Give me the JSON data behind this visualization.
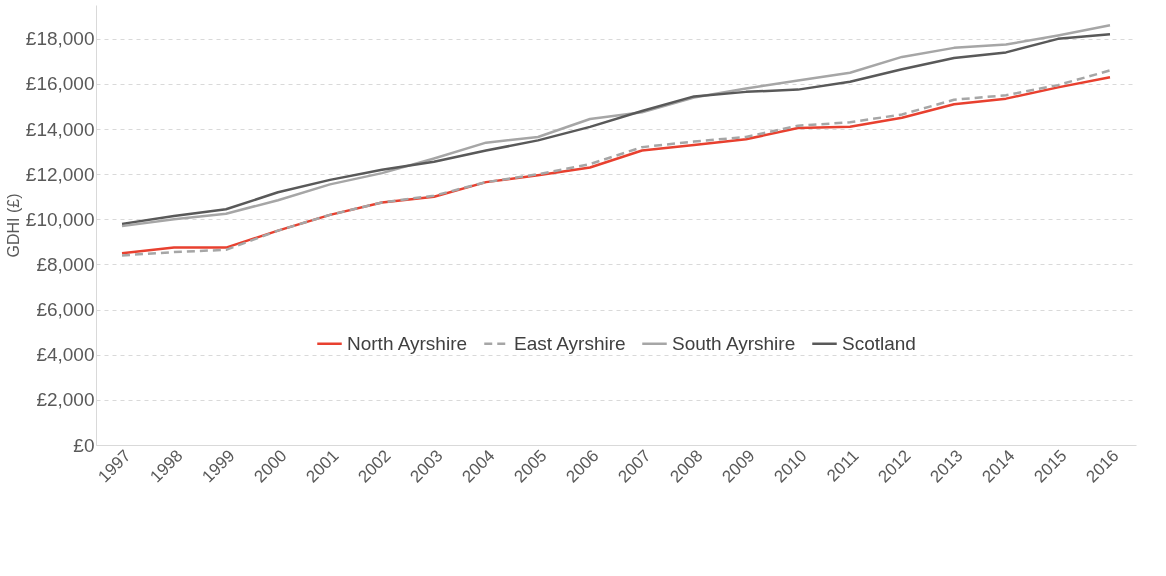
{
  "chart_data": {
    "type": "line",
    "ylabel": "GDHI (£)",
    "categories": [
      "1997",
      "1998",
      "1999",
      "2000",
      "2001",
      "2002",
      "2003",
      "2004",
      "2005",
      "2006",
      "2007",
      "2008",
      "2009",
      "2010",
      "2011",
      "2012",
      "2013",
      "2014",
      "2015",
      "2016"
    ],
    "series": [
      {
        "name": "North Ayrshire",
        "color": "#e8402f",
        "line_style": "solid",
        "values": [
          8500,
          8750,
          8750,
          9500,
          10200,
          10750,
          11000,
          11650,
          11950,
          12300,
          13050,
          13300,
          13550,
          14050,
          14100,
          14500,
          15100,
          15350,
          15850,
          16300
        ]
      },
      {
        "name": "East Ayrshire",
        "color": "#a6a6a6",
        "line_style": "dashed",
        "values": [
          8400,
          8550,
          8650,
          9500,
          10200,
          10750,
          11050,
          11650,
          12000,
          12450,
          13200,
          13450,
          13650,
          14150,
          14300,
          14650,
          15300,
          15500,
          15950,
          16600
        ]
      },
      {
        "name": "South Ayrshire",
        "color": "#a6a6a6",
        "line_style": "solid",
        "values": [
          9700,
          10000,
          10250,
          10850,
          11550,
          12050,
          12700,
          13400,
          13650,
          14450,
          14750,
          15400,
          15800,
          16150,
          16500,
          17200,
          17600,
          17750,
          18150,
          18600
        ]
      },
      {
        "name": "Scotland",
        "color": "#595959",
        "line_style": "solid",
        "values": [
          9800,
          10150,
          10450,
          11200,
          11750,
          12200,
          12550,
          13050,
          13500,
          14100,
          14800,
          15450,
          15650,
          15750,
          16100,
          16650,
          17150,
          17400,
          18000,
          18200
        ]
      }
    ],
    "ylim": [
      0,
      19500
    ],
    "yticks": [
      {
        "value": 0,
        "label": "£0"
      },
      {
        "value": 2000,
        "label": "£2,000"
      },
      {
        "value": 4000,
        "label": "£4,000"
      },
      {
        "value": 6000,
        "label": "£6,000"
      },
      {
        "value": 8000,
        "label": "£8,000"
      },
      {
        "value": 10000,
        "label": "£10,000"
      },
      {
        "value": 12000,
        "label": "£12,000"
      },
      {
        "value": 14000,
        "label": "£14,000"
      },
      {
        "value": 16000,
        "label": "£16,000"
      },
      {
        "value": 18000,
        "label": "£18,000"
      }
    ],
    "grid": "y",
    "legend": "bottom",
    "marker": "none"
  }
}
